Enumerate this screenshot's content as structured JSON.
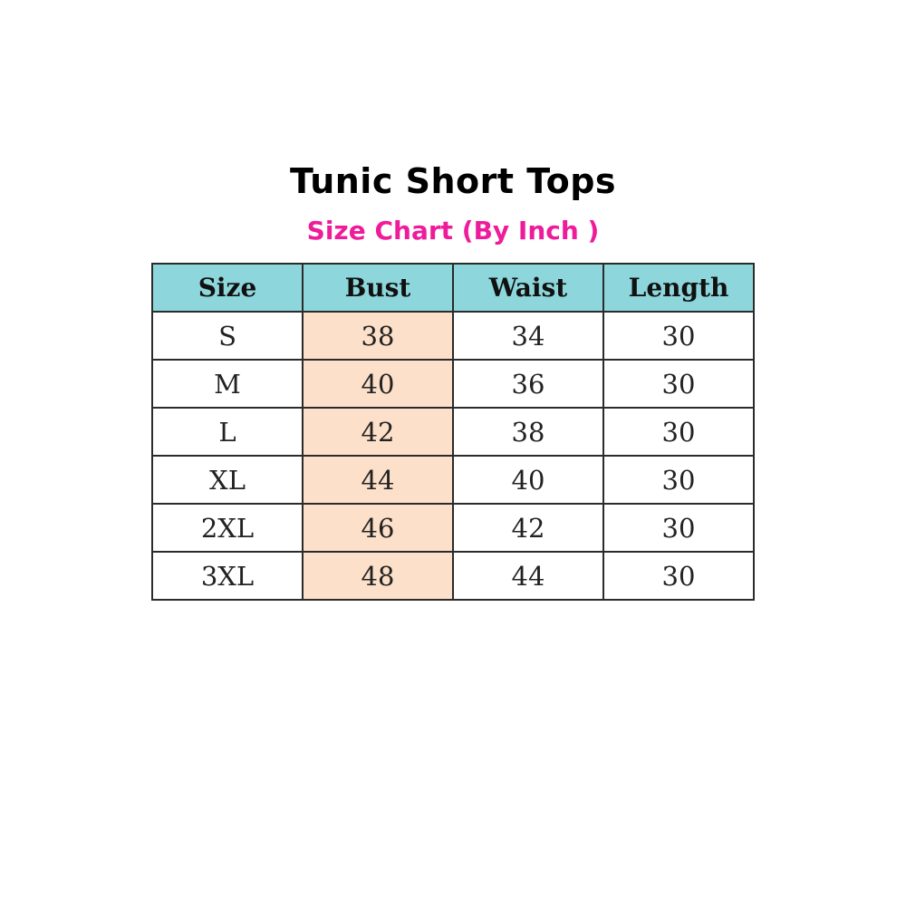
{
  "title": "Tunic Short Tops",
  "subtitle": "Size Chart (By Inch )",
  "colors": {
    "header_bg": "#8dd7dc",
    "bust_bg": "#fde0c9",
    "subtitle": "#ee1c9a"
  },
  "table": {
    "headers": [
      "Size",
      "Bust",
      "Waist",
      "Length"
    ],
    "rows": [
      [
        "S",
        "38",
        "34",
        "30"
      ],
      [
        "M",
        "40",
        "36",
        "30"
      ],
      [
        "L",
        "42",
        "38",
        "30"
      ],
      [
        "XL",
        "44",
        "40",
        "30"
      ],
      [
        "2XL",
        "46",
        "42",
        "30"
      ],
      [
        "3XL",
        "48",
        "44",
        "30"
      ]
    ]
  }
}
